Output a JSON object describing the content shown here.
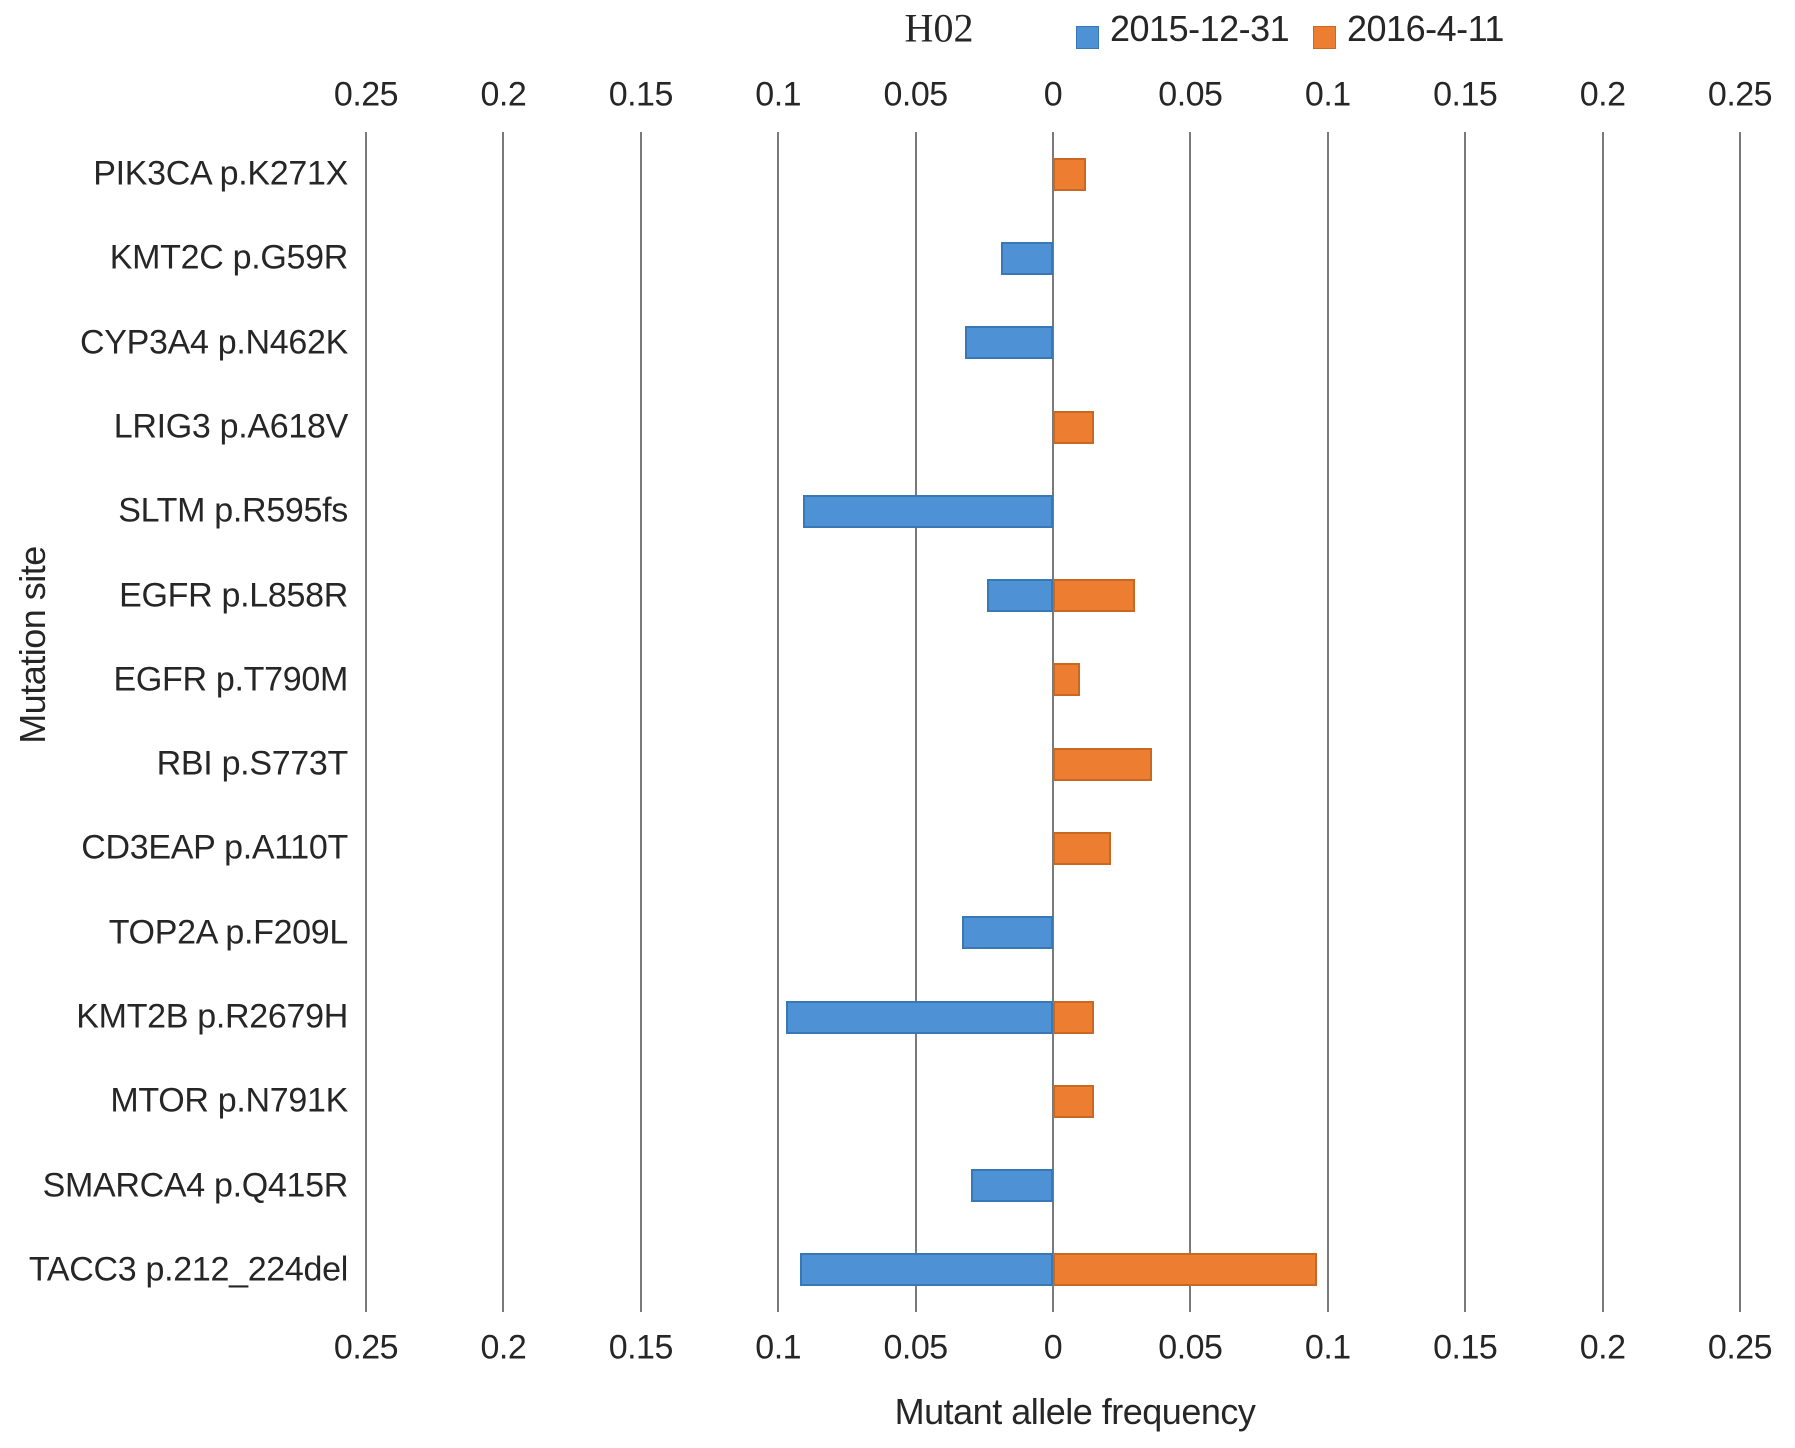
{
  "figure": {
    "title": "H02",
    "x_axis_title": "Mutant allele frequency",
    "y_axis_title": "Mutation site"
  },
  "legend": {
    "items": [
      {
        "label": "2015-12-31",
        "color": "#4E91D5",
        "border_color": "#3A78B5"
      },
      {
        "label": "2016-4-11",
        "color": "#ED7D31",
        "border_color": "#C96820"
      }
    ]
  },
  "axis_ticks": [
    {
      "value": -0.25,
      "label": "0.25"
    },
    {
      "value": -0.2,
      "label": "0.2"
    },
    {
      "value": -0.15,
      "label": "0.15"
    },
    {
      "value": -0.1,
      "label": "0.1"
    },
    {
      "value": -0.05,
      "label": "0.05"
    },
    {
      "value": 0,
      "label": "0"
    },
    {
      "value": 0.05,
      "label": "0.05"
    },
    {
      "value": 0.1,
      "label": "0.1"
    },
    {
      "value": 0.15,
      "label": "0.15"
    },
    {
      "value": 0.2,
      "label": "0.2"
    },
    {
      "value": 0.25,
      "label": "0.25"
    }
  ],
  "chart_data": {
    "type": "bar",
    "orientation": "horizontal",
    "diverging": true,
    "title": "H02",
    "xlabel": "Mutant allele frequency",
    "ylabel": "Mutation site",
    "xlim": [
      -0.25,
      0.25
    ],
    "x_tick_step": 0.05,
    "x_tick_labels_shown_as": "absolute values on both sides of zero, repeated above and below plot",
    "grid": "vertical gridlines at every tick, no frame",
    "legend_position": "top",
    "categories": [
      "PIK3CA p.K271X",
      "KMT2C p.G59R",
      "CYP3A4 p.N462K",
      "LRIG3 p.A618V",
      "SLTM p.R595fs",
      "EGFR p.L858R",
      "EGFR p.T790M",
      "RBI p.S773T",
      "CD3EAP p.A110T",
      "TOP2A p.F209L",
      "KMT2B p.R2679H",
      "MTOR p.N791K",
      "SMARCA4 p.Q415R",
      "TACC3 p.212_224del"
    ],
    "series": [
      {
        "name": "2015-12-31",
        "direction": "left",
        "color": "#4E91D5",
        "border_color": "#3A78B5",
        "values": [
          0,
          0.019,
          0.032,
          0,
          0.091,
          0.024,
          0,
          0,
          0,
          0.033,
          0.097,
          0,
          0.03,
          0.092
        ]
      },
      {
        "name": "2016-4-11",
        "direction": "right",
        "color": "#ED7D31",
        "border_color": "#C96820",
        "values": [
          0.012,
          0,
          0,
          0.015,
          0,
          0.03,
          0.01,
          0.036,
          0.021,
          0,
          0.015,
          0.015,
          0,
          0.096
        ]
      }
    ]
  },
  "style_colors": {
    "gridline": "#7A7A7A",
    "text": "#262626",
    "background": "#FFFFFF"
  }
}
